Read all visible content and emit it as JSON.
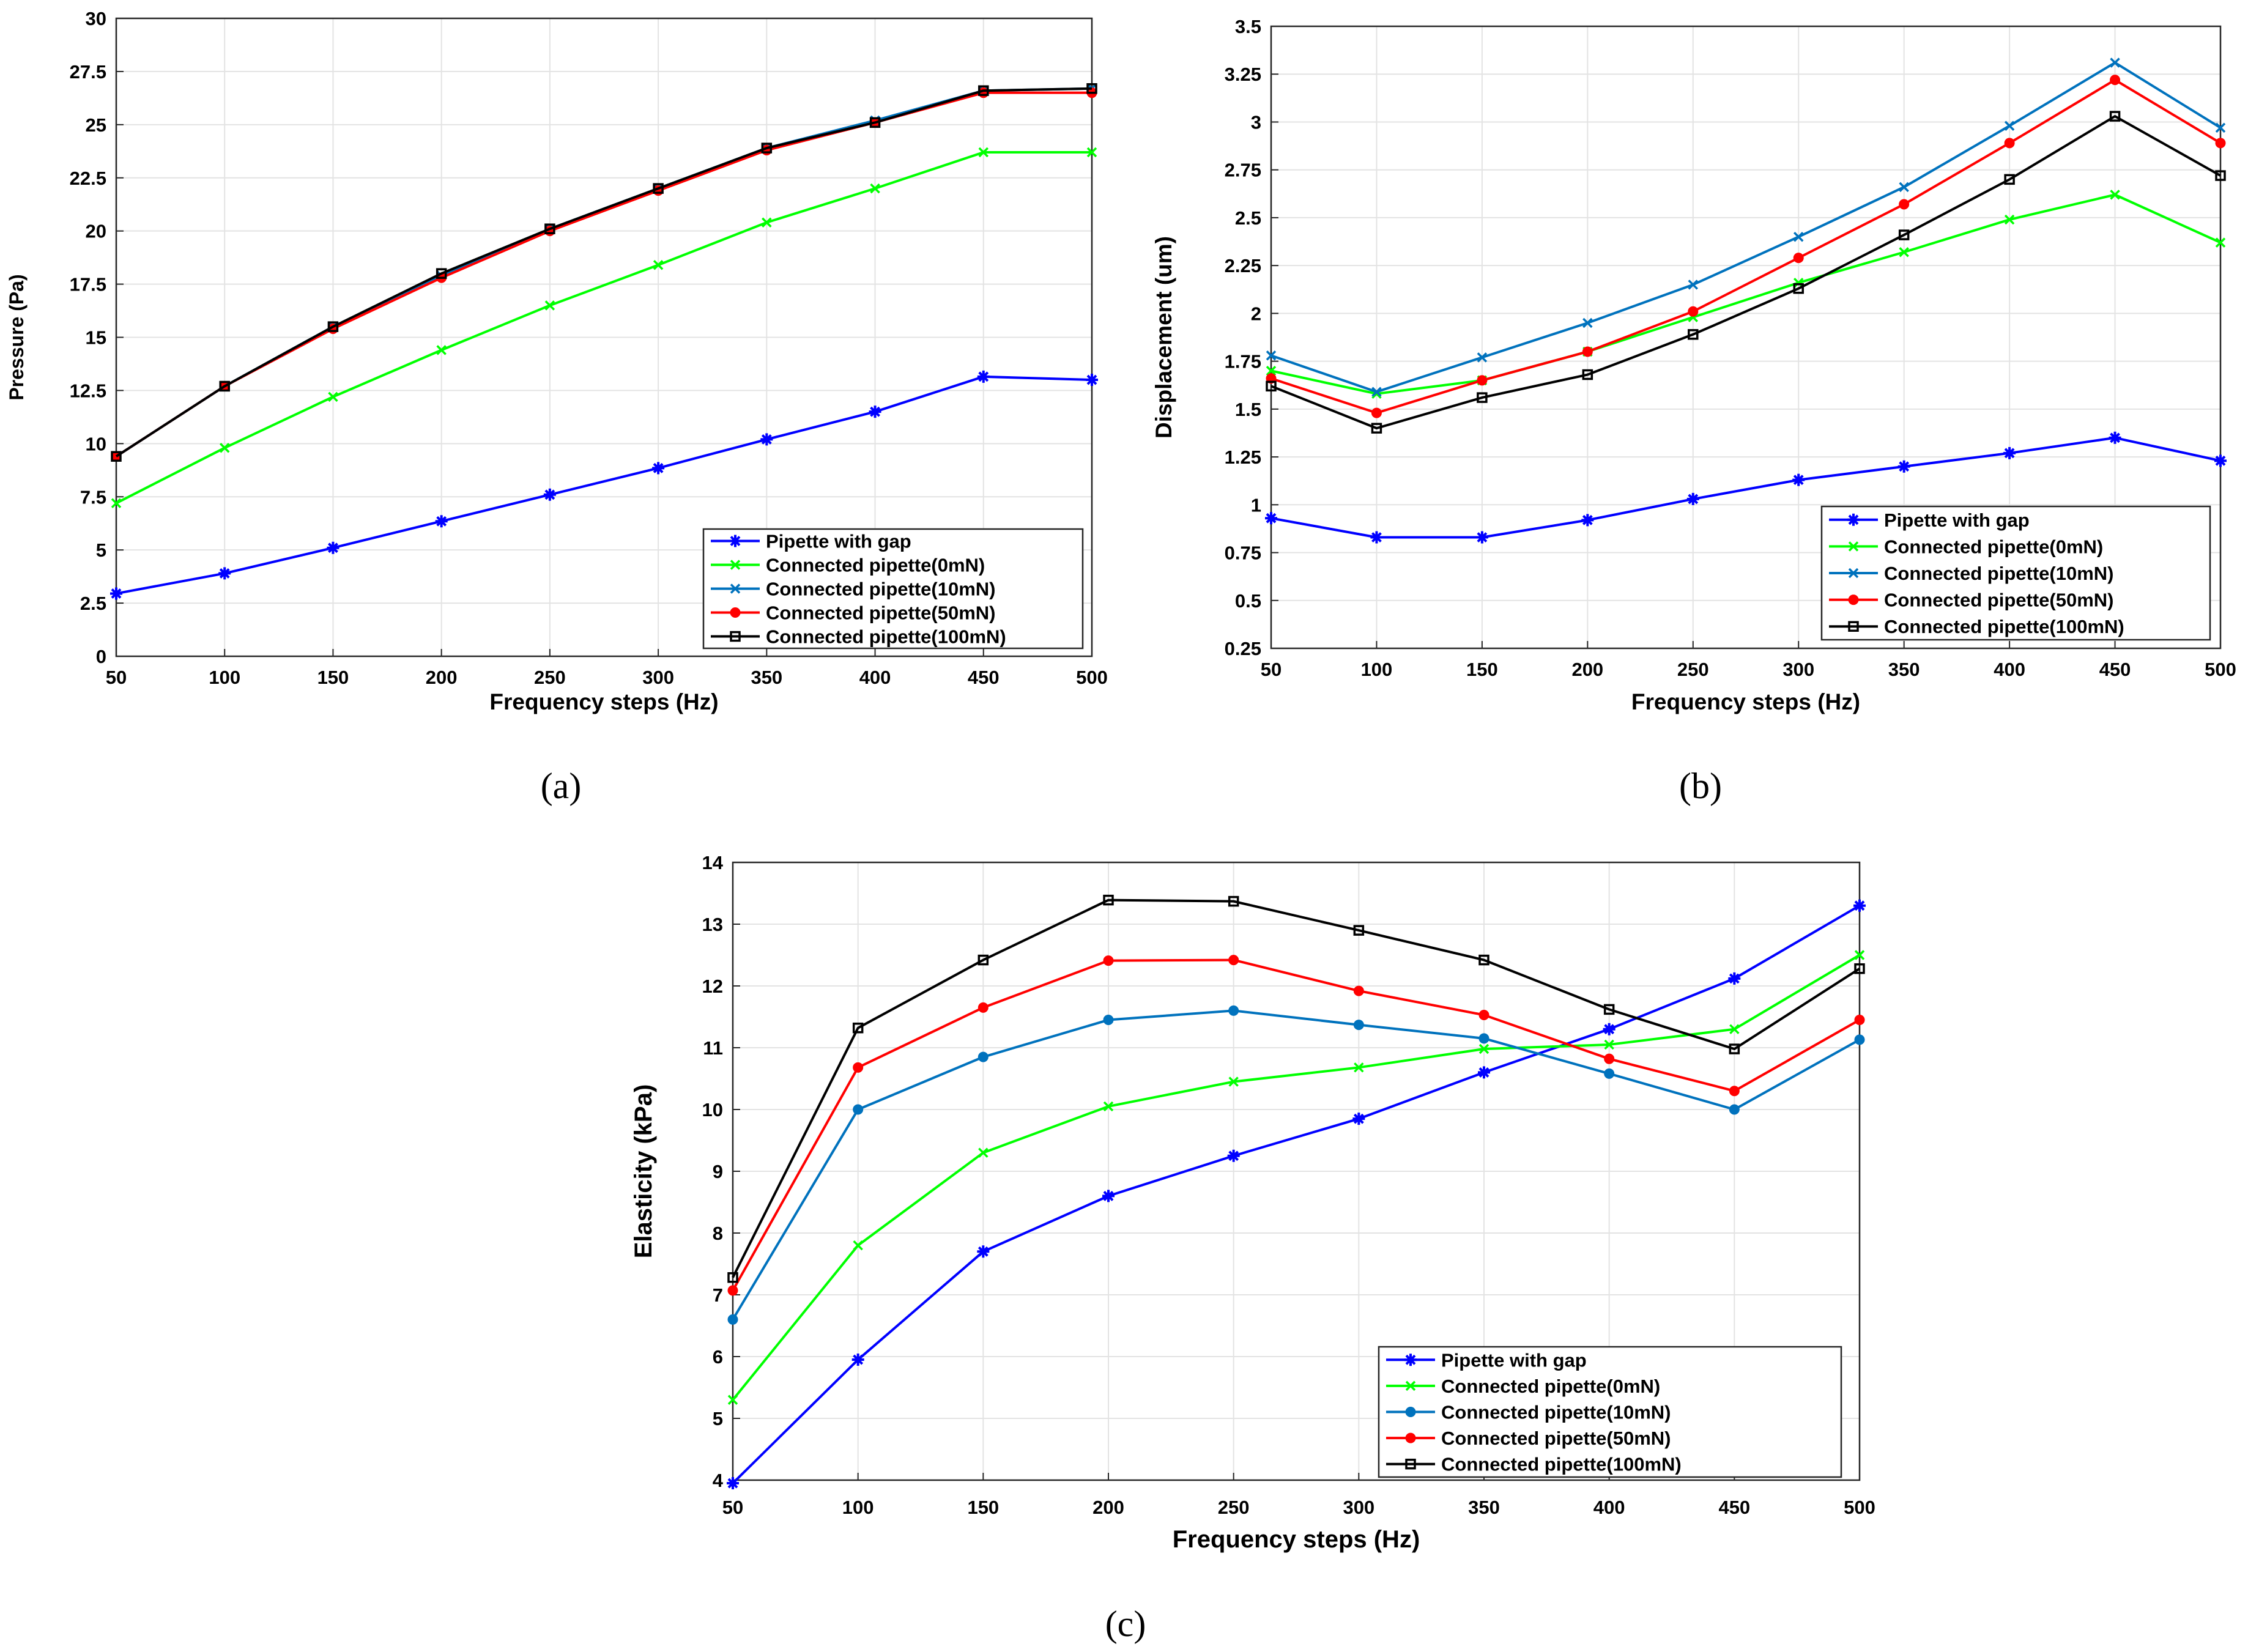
{
  "chart_data": [
    {
      "type": "line",
      "xlabel": "Frequency steps (Hz)",
      "ylabel": "Pressure (Pa)",
      "xlim": [
        50,
        500
      ],
      "ylim": [
        0,
        30
      ],
      "x": [
        50,
        100,
        150,
        200,
        250,
        300,
        350,
        400,
        450,
        500
      ],
      "x_ticks": [
        "50",
        "100",
        "150",
        "200",
        "250",
        "300",
        "350",
        "400",
        "450",
        "500"
      ],
      "y_ticks": [
        "0",
        "2.5",
        "5",
        "7.5",
        "10",
        "12.5",
        "15",
        "17.5",
        "20",
        "22.5",
        "25",
        "27.5",
        "30"
      ],
      "grid": true,
      "legend_position": "bottom-right",
      "caption": "(a)",
      "series": [
        {
          "name": "Pipette with gap",
          "color": "#0000ff",
          "marker": "star",
          "values": [
            2.95,
            3.9,
            5.1,
            6.35,
            7.6,
            8.85,
            10.2,
            11.5,
            13.15,
            13.0
          ]
        },
        {
          "name": "Connected pipette(0mN)",
          "color": "#00ff00",
          "marker": "x",
          "values": [
            7.2,
            9.8,
            12.2,
            14.4,
            16.5,
            18.4,
            20.4,
            22.0,
            23.7,
            23.7
          ]
        },
        {
          "name": "Connected pipette(10mN)",
          "color": "#0072bd",
          "marker": "x",
          "values": [
            9.4,
            12.7,
            15.5,
            17.9,
            20.1,
            22.0,
            23.9,
            25.2,
            26.6,
            26.7
          ]
        },
        {
          "name": "Connected pipette(50mN)",
          "color": "#ff0000",
          "marker": "dot",
          "values": [
            9.4,
            12.7,
            15.4,
            17.8,
            20.0,
            21.9,
            23.8,
            25.1,
            26.5,
            26.5
          ]
        },
        {
          "name": "Connected pipette(100mN)",
          "color": "#000000",
          "marker": "square",
          "values": [
            9.4,
            12.7,
            15.5,
            18.0,
            20.1,
            22.0,
            23.9,
            25.1,
            26.6,
            26.7
          ]
        }
      ]
    },
    {
      "type": "line",
      "xlabel": "Frequency steps (Hz)",
      "ylabel": "Displacement (um)",
      "xlim": [
        50,
        500
      ],
      "ylim": [
        0.25,
        3.5
      ],
      "x": [
        50,
        100,
        150,
        200,
        250,
        300,
        350,
        400,
        450,
        500
      ],
      "x_ticks": [
        "50",
        "100",
        "150",
        "200",
        "250",
        "300",
        "350",
        "400",
        "450",
        "500"
      ],
      "y_ticks": [
        "0.25",
        "0.5",
        "0.75",
        "1",
        "1.25",
        "1.5",
        "1.75",
        "2",
        "2.25",
        "2.5",
        "2.75",
        "3",
        "3.25",
        "3.5"
      ],
      "grid": true,
      "legend_position": "bottom-right",
      "caption": "(b)",
      "series": [
        {
          "name": "Pipette with gap",
          "color": "#0000ff",
          "marker": "star",
          "values": [
            0.93,
            0.83,
            0.83,
            0.92,
            1.03,
            1.13,
            1.2,
            1.27,
            1.35,
            1.23
          ]
        },
        {
          "name": "Connected pipette(0mN)",
          "color": "#00ff00",
          "marker": "x",
          "values": [
            1.7,
            1.58,
            1.65,
            1.8,
            1.98,
            2.16,
            2.32,
            2.49,
            2.62,
            2.37
          ]
        },
        {
          "name": "Connected pipette(10mN)",
          "color": "#0072bd",
          "marker": "x",
          "values": [
            1.78,
            1.59,
            1.77,
            1.95,
            2.15,
            2.4,
            2.66,
            2.98,
            3.31,
            2.97
          ]
        },
        {
          "name": "Connected pipette(50mN)",
          "color": "#ff0000",
          "marker": "dot",
          "values": [
            1.66,
            1.48,
            1.65,
            1.8,
            2.01,
            2.29,
            2.57,
            2.89,
            3.22,
            2.89
          ]
        },
        {
          "name": "Connected pipette(100mN)",
          "color": "#000000",
          "marker": "square",
          "values": [
            1.62,
            1.4,
            1.56,
            1.68,
            1.89,
            2.13,
            2.41,
            2.7,
            3.03,
            2.72
          ]
        }
      ]
    },
    {
      "type": "line",
      "xlabel": "Frequency steps (Hz)",
      "ylabel": "Elasticity (kPa)",
      "xlim": [
        50,
        500
      ],
      "ylim": [
        4,
        14
      ],
      "x": [
        50,
        100,
        150,
        200,
        250,
        300,
        350,
        400,
        450,
        500
      ],
      "x_ticks": [
        "50",
        "100",
        "150",
        "200",
        "250",
        "300",
        "350",
        "400",
        "450",
        "500"
      ],
      "y_ticks": [
        "4",
        "5",
        "6",
        "7",
        "8",
        "9",
        "10",
        "11",
        "12",
        "13",
        "14"
      ],
      "grid": true,
      "legend_position": "bottom-right",
      "caption": "(c)",
      "series": [
        {
          "name": "Pipette with gap",
          "color": "#0000ff",
          "marker": "star",
          "values": [
            3.95,
            5.95,
            7.7,
            8.6,
            9.25,
            9.85,
            10.6,
            11.3,
            12.12,
            13.3
          ]
        },
        {
          "name": "Connected pipette(0mN)",
          "color": "#00ff00",
          "marker": "x",
          "values": [
            5.3,
            7.8,
            9.3,
            10.05,
            10.45,
            10.68,
            10.98,
            11.05,
            11.3,
            12.5
          ]
        },
        {
          "name": "Connected pipette(10mN)",
          "color": "#0072bd",
          "marker": "dot",
          "values": [
            6.6,
            10.0,
            10.85,
            11.45,
            11.6,
            11.37,
            11.15,
            10.58,
            10.0,
            11.13
          ]
        },
        {
          "name": "Connected pipette(50mN)",
          "color": "#ff0000",
          "marker": "dot",
          "values": [
            7.07,
            10.68,
            11.65,
            12.41,
            12.42,
            11.92,
            11.53,
            10.82,
            10.3,
            11.45
          ]
        },
        {
          "name": "Connected pipette(100mN)",
          "color": "#000000",
          "marker": "square",
          "values": [
            7.28,
            11.32,
            12.42,
            13.39,
            13.37,
            12.9,
            12.42,
            11.62,
            10.98,
            12.28
          ]
        }
      ]
    }
  ]
}
